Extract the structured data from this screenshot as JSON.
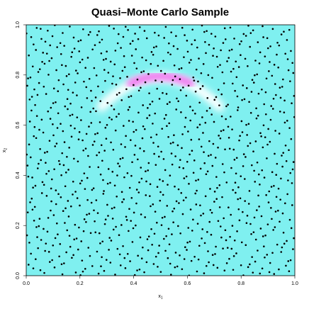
{
  "chart_data": {
    "type": "scatter",
    "title": "Quasi–Monte Carlo Sample",
    "xlabel": "x",
    "xlabel_sub": "1",
    "ylabel": "x",
    "ylabel_sub": "2",
    "xlim": [
      0,
      1
    ],
    "ylim": [
      0,
      1
    ],
    "x_ticks": [
      "0.0",
      "0.2",
      "0.4",
      "0.6",
      "0.8",
      "1.0"
    ],
    "y_ticks": [
      "0.0",
      "0.2",
      "0.4",
      "0.6",
      "0.8",
      "1.0"
    ],
    "grid": false,
    "sample": {
      "kind": "halton",
      "bases": [
        2,
        3
      ],
      "count": 1000,
      "marker_color": "#000000"
    },
    "background": {
      "kind": "density",
      "base_color": "#7ff0f0",
      "highlight_colors": [
        "#ffffff",
        "#f07ff0"
      ],
      "shape": "curved-ridge",
      "ridge_center": [
        0.5,
        0.79
      ],
      "ridge_curvature": 2.4
    }
  }
}
